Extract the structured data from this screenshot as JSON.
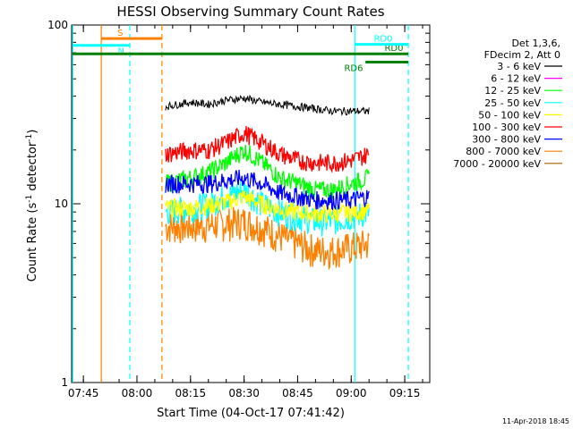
{
  "chart_data": {
    "type": "line",
    "title": "HESSI Observing Summary Count Rates",
    "xlabel": "Start Time (04-Oct-17 07:41:42)",
    "ylabel_main": "Count Rate (s",
    "ylabel_sup1": "-1",
    "ylabel_mid": " detector",
    "ylabel_sup2": "-1",
    "ylabel_end": ")",
    "yscale": "log",
    "ylim": [
      1,
      100
    ],
    "xlim": [
      "07:41:42",
      "09:22:00"
    ],
    "x_ticks": [
      "07:45",
      "08:00",
      "08:15",
      "08:30",
      "08:45",
      "09:00",
      "09:15"
    ],
    "y_ticks": [
      "1",
      "10",
      "100"
    ],
    "legend_header": [
      "Det 1,3,6,",
      "FDecim 2, Att 0"
    ],
    "legend_position": "right",
    "series": [
      {
        "name": "3 - 6 keV",
        "color": "#000000",
        "start": "08:08",
        "end": "09:05",
        "points": [
          [
            "08:08",
            35
          ],
          [
            "08:15",
            37
          ],
          [
            "08:20",
            36
          ],
          [
            "08:25",
            38
          ],
          [
            "08:30",
            39
          ],
          [
            "08:35",
            37
          ],
          [
            "08:40",
            36
          ],
          [
            "08:45",
            35
          ],
          [
            "08:50",
            34
          ],
          [
            "08:55",
            33
          ],
          [
            "09:00",
            33
          ],
          [
            "09:05",
            33
          ]
        ]
      },
      {
        "name": "6 - 12 keV",
        "color": "#ff00ff",
        "start": "08:08",
        "end": "09:05",
        "points": []
      },
      {
        "name": "12 - 25 keV",
        "color": "#00ff00",
        "start": "08:08",
        "end": "09:05",
        "points": [
          [
            "08:08",
            13
          ],
          [
            "08:15",
            14
          ],
          [
            "08:20",
            15
          ],
          [
            "08:25",
            17
          ],
          [
            "08:30",
            20
          ],
          [
            "08:35",
            17
          ],
          [
            "08:40",
            14
          ],
          [
            "08:45",
            13
          ],
          [
            "08:50",
            12
          ],
          [
            "08:55",
            12
          ],
          [
            "09:00",
            13
          ],
          [
            "09:05",
            14
          ]
        ]
      },
      {
        "name": "25 - 50 keV",
        "color": "#00ffff",
        "start": "08:08",
        "end": "09:05",
        "points": [
          [
            "08:08",
            9
          ],
          [
            "08:15",
            9.5
          ],
          [
            "08:20",
            10
          ],
          [
            "08:25",
            11
          ],
          [
            "08:30",
            12
          ],
          [
            "08:35",
            10
          ],
          [
            "08:40",
            9
          ],
          [
            "08:45",
            8.5
          ],
          [
            "08:50",
            8
          ],
          [
            "08:55",
            8
          ],
          [
            "09:00",
            8.5
          ],
          [
            "09:05",
            9
          ]
        ]
      },
      {
        "name": "50 - 100 keV",
        "color": "#ffff00",
        "start": "08:08",
        "end": "09:05",
        "points": [
          [
            "08:08",
            9.5
          ],
          [
            "08:15",
            9.5
          ],
          [
            "08:20",
            9.8
          ],
          [
            "08:25",
            10.2
          ],
          [
            "08:30",
            11
          ],
          [
            "08:35",
            10
          ],
          [
            "08:40",
            9.3
          ],
          [
            "08:45",
            9
          ],
          [
            "08:50",
            8.8
          ],
          [
            "08:55",
            8.8
          ],
          [
            "09:00",
            9
          ],
          [
            "09:05",
            9.2
          ]
        ]
      },
      {
        "name": "100 - 300 keV",
        "color": "#ff0000",
        "start": "08:08",
        "end": "09:05",
        "points": [
          [
            "08:08",
            19
          ],
          [
            "08:15",
            20
          ],
          [
            "08:20",
            20
          ],
          [
            "08:25",
            22
          ],
          [
            "08:30",
            25
          ],
          [
            "08:35",
            22
          ],
          [
            "08:40",
            19
          ],
          [
            "08:45",
            17.5
          ],
          [
            "08:50",
            17
          ],
          [
            "08:55",
            17
          ],
          [
            "09:00",
            17.5
          ],
          [
            "09:05",
            19
          ]
        ]
      },
      {
        "name": "300 - 800 keV",
        "color": "#0000ff",
        "start": "08:08",
        "end": "09:05",
        "points": [
          [
            "08:08",
            13
          ],
          [
            "08:15",
            13
          ],
          [
            "08:20",
            13
          ],
          [
            "08:25",
            13.5
          ],
          [
            "08:30",
            14
          ],
          [
            "08:35",
            13
          ],
          [
            "08:40",
            11.5
          ],
          [
            "08:45",
            11
          ],
          [
            "08:50",
            10.5
          ],
          [
            "08:55",
            10.5
          ],
          [
            "09:00",
            10.5
          ],
          [
            "09:05",
            11
          ]
        ]
      },
      {
        "name": "800 - 7000 keV",
        "color": "#ff8000",
        "start": "08:08",
        "end": "09:05",
        "points": [
          [
            "08:08",
            7.5
          ],
          [
            "08:15",
            7.5
          ],
          [
            "08:20",
            7.6
          ],
          [
            "08:25",
            7.8
          ],
          [
            "08:30",
            8
          ],
          [
            "08:35",
            7.4
          ],
          [
            "08:40",
            6.6
          ],
          [
            "08:45",
            6
          ],
          [
            "08:50",
            5.5
          ],
          [
            "08:55",
            5.5
          ],
          [
            "09:00",
            5.7
          ],
          [
            "09:05",
            6
          ]
        ]
      },
      {
        "name": "7000 - 20000 keV",
        "color": "#a06000",
        "start": "08:08",
        "end": "09:05",
        "points": []
      }
    ],
    "annotations": [
      {
        "label": "S",
        "color": "#ff8000",
        "x_start": "07:50",
        "x_end": "08:07",
        "y": 84
      },
      {
        "label": "N",
        "color": "#00ffff",
        "x_start": "07:41:42",
        "x_end": "07:58",
        "y": 77
      },
      {
        "label": "RD0",
        "color": "#008000",
        "x_start": "07:41:42",
        "x_end": "09:16",
        "y": 69
      },
      {
        "label": "RD6",
        "color": "#008000",
        "x_start": "09:04",
        "x_end": "09:16",
        "y": 62
      },
      {
        "label": "RD0",
        "color": "#00ffff",
        "x_start": "09:01",
        "x_end": "09:16",
        "y": 78
      }
    ],
    "vertical_lines": [
      {
        "time": "07:42",
        "color": "#00ffff",
        "style": "solid"
      },
      {
        "time": "07:50",
        "color": "#ff8000",
        "style": "solid"
      },
      {
        "time": "07:58",
        "color": "#00ffff",
        "style": "dashed"
      },
      {
        "time": "08:07",
        "color": "#ff8000",
        "style": "dashed"
      },
      {
        "time": "09:01",
        "color": "#00ffff",
        "style": "solid"
      },
      {
        "time": "09:16",
        "color": "#00ffff",
        "style": "dashed"
      }
    ]
  },
  "footer_date": "11-Apr-2018 18:45"
}
